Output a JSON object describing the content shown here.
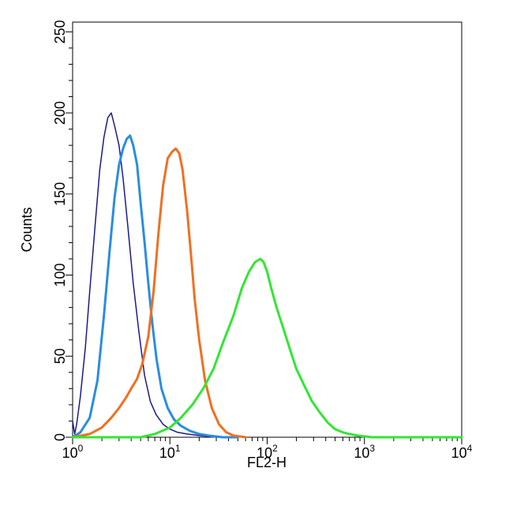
{
  "chart_data": {
    "type": "line",
    "title": "",
    "xlabel": "FL2-H",
    "ylabel": "Counts",
    "x_scale": "log",
    "xlim": [
      1,
      10000
    ],
    "ylim": [
      0,
      256
    ],
    "x_ticks": [
      {
        "value": 1,
        "base": "10",
        "exp": "0"
      },
      {
        "value": 10,
        "base": "10",
        "exp": "1"
      },
      {
        "value": 100,
        "base": "10",
        "exp": "2"
      },
      {
        "value": 1000,
        "base": "10",
        "exp": "3"
      },
      {
        "value": 10000,
        "base": "10",
        "exp": "4"
      }
    ],
    "y_ticks": [
      "0",
      "50",
      "100",
      "150",
      "200",
      "250"
    ],
    "grid": false,
    "legend": "none",
    "series": [
      {
        "color": "#1a1a8c",
        "stroke": 1.5,
        "x": [
          1.0,
          1.05,
          1.1,
          1.2,
          1.35,
          1.5,
          1.7,
          1.9,
          2.1,
          2.3,
          2.5,
          2.7,
          3.0,
          3.3,
          3.7,
          4.2,
          4.8,
          5.5,
          6.3,
          7.2,
          8.5,
          10,
          12,
          15,
          20,
          30,
          50
        ],
        "y": [
          10,
          2,
          8,
          25,
          55,
          90,
          130,
          165,
          185,
          197,
          200,
          192,
          180,
          160,
          130,
          95,
          65,
          38,
          22,
          14,
          8,
          5,
          3,
          2,
          1,
          0,
          0
        ]
      },
      {
        "color": "#2a8de0",
        "stroke": 3,
        "x": [
          1.0,
          1.2,
          1.5,
          1.8,
          2.1,
          2.4,
          2.7,
          3.0,
          3.3,
          3.6,
          3.9,
          4.2,
          4.6,
          5.0,
          5.5,
          6.0,
          6.6,
          7.3,
          8.2,
          9.5,
          11,
          13,
          16,
          20,
          25,
          35,
          50
        ],
        "y": [
          0,
          3,
          12,
          35,
          75,
          115,
          148,
          168,
          178,
          184,
          186,
          180,
          168,
          145,
          120,
          95,
          70,
          48,
          30,
          18,
          11,
          7,
          4,
          2,
          1,
          0,
          0
        ]
      },
      {
        "color": "#f07020",
        "stroke": 3,
        "x": [
          1.0,
          1.5,
          2.0,
          2.5,
          3.0,
          3.5,
          4.0,
          4.6,
          5.2,
          6.0,
          6.8,
          7.6,
          8.5,
          9.5,
          10.5,
          11.5,
          12.5,
          13.5,
          15,
          16.5,
          18,
          20,
          23,
          27,
          32,
          38,
          45,
          60
        ],
        "y": [
          0,
          2,
          6,
          12,
          18,
          24,
          30,
          36,
          45,
          62,
          90,
          125,
          155,
          172,
          176,
          178,
          175,
          165,
          140,
          112,
          85,
          60,
          35,
          18,
          8,
          3,
          1,
          0
        ]
      },
      {
        "color": "#33e633",
        "stroke": 3,
        "x": [
          1.0,
          5.0,
          7.0,
          10,
          13,
          17,
          22,
          28,
          35,
          45,
          55,
          65,
          75,
          85,
          92,
          100,
          110,
          125,
          145,
          170,
          200,
          240,
          290,
          350,
          420,
          500,
          600,
          700,
          850,
          1200,
          10000
        ],
        "y": [
          0,
          0,
          2,
          6,
          12,
          20,
          30,
          42,
          58,
          75,
          92,
          102,
          108,
          110,
          108,
          102,
          92,
          80,
          68,
          55,
          42,
          32,
          22,
          15,
          9,
          5,
          3,
          2,
          1,
          0,
          0
        ]
      }
    ]
  }
}
